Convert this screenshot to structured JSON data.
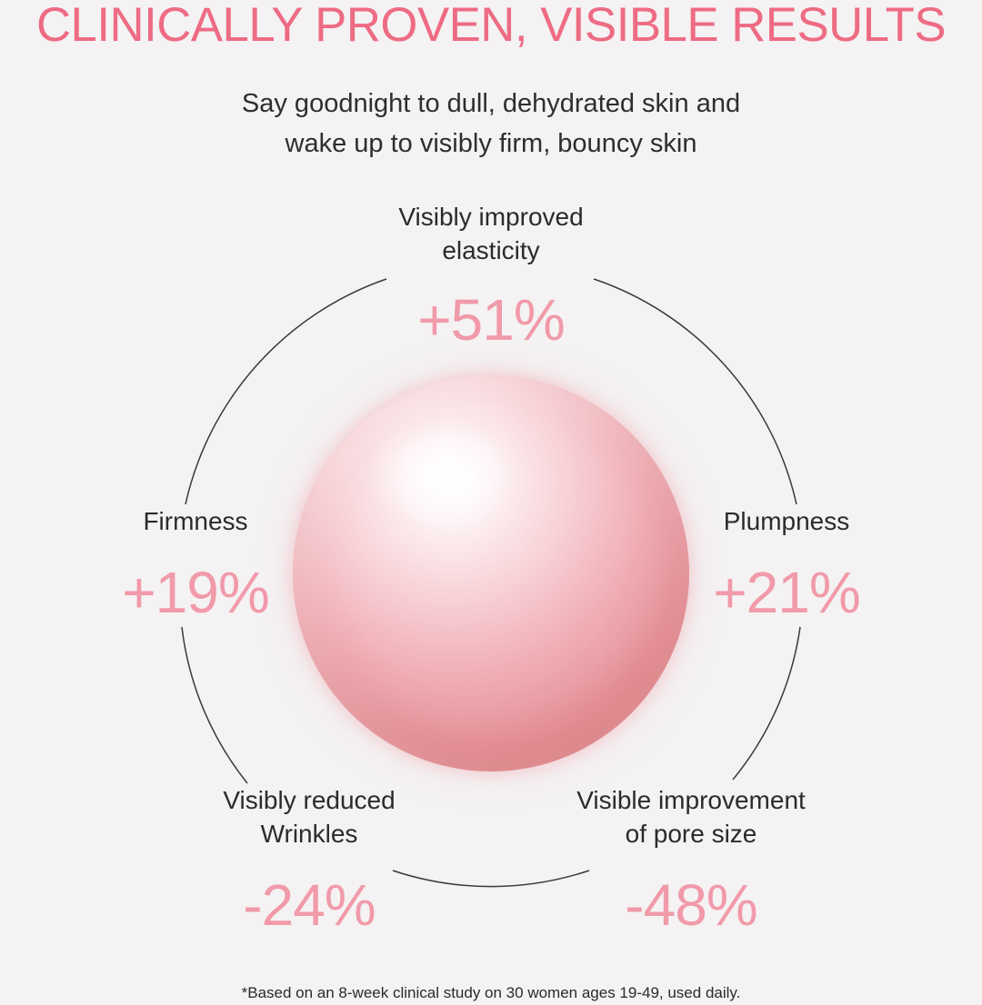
{
  "headline": "CLINICALLY PROVEN, VISIBLE RESULTS",
  "subtitle": {
    "line1": "Say goodnight to dull, dehydrated skin and",
    "line2": "wake up to visibly firm, bouncy skin"
  },
  "stats": {
    "elasticity": {
      "label_line1": "Visibly improved",
      "label_line2": "elasticity",
      "value": "+51%"
    },
    "firmness": {
      "label": "Firmness",
      "value": "+19%"
    },
    "plumpness": {
      "label": "Plumpness",
      "value": "+21%"
    },
    "wrinkles": {
      "label_line1": "Visibly reduced",
      "label_line2": "Wrinkles",
      "value": "-24%"
    },
    "pores": {
      "label_line1": "Visible improvement",
      "label_line2": "of pore size",
      "value": "-48%"
    }
  },
  "footnote": "*Based on an 8-week clinical study on 30 women ages 19-49, used daily.",
  "colors": {
    "headline": "#ee6b84",
    "stat_value": "#f19aa9",
    "background": "#f4f2f3",
    "ring": "#3a3a3a"
  }
}
